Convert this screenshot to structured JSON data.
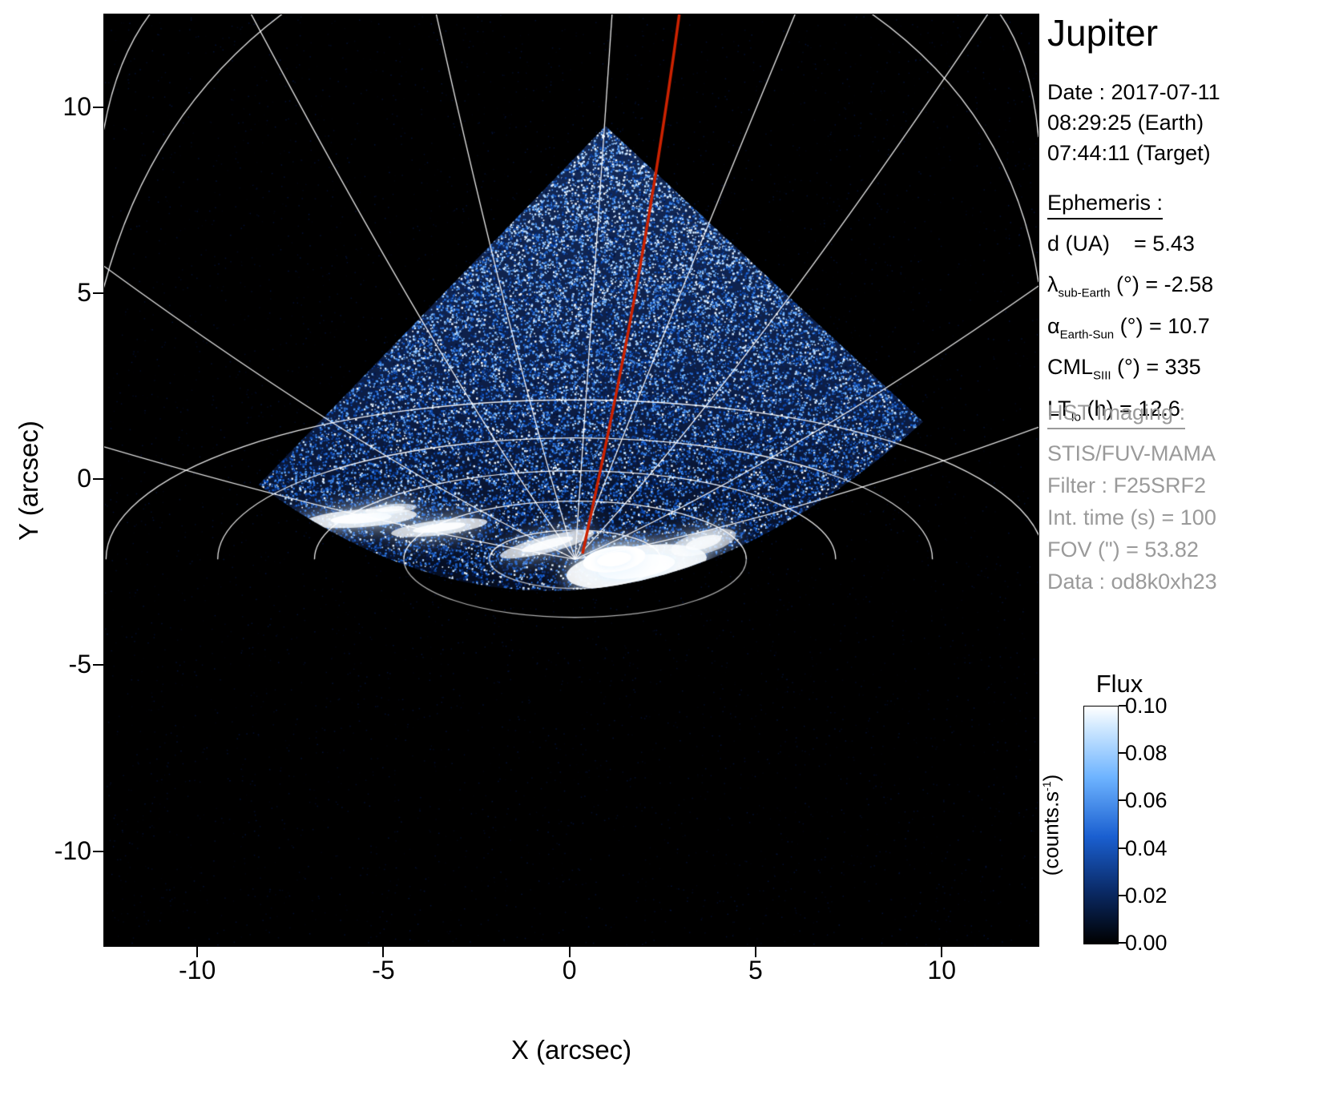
{
  "title": "Jupiter",
  "info": {
    "date_label": "Date : 2017-07-11",
    "earth_time": "08:29:25 (Earth)",
    "target_time": "07:44:11 (Target)",
    "ephemeris_header": "Ephemeris :",
    "ephemeris": [
      {
        "base": "d",
        "sub": "",
        "rest": " (UA)    = 5.43"
      },
      {
        "base": "λ",
        "sub": "sub-Earth",
        "rest": " (°) = -2.58"
      },
      {
        "base": "α",
        "sub": "Earth-Sun",
        "rest": " (°) = 10.7"
      },
      {
        "base": "CML",
        "sub": "SIII",
        "rest": " (°) = 335"
      },
      {
        "base": "LT",
        "sub": "Io",
        "rest": " (h) = 12.6"
      }
    ],
    "hst_header": "HST Imaging :",
    "hst": [
      "STIS/FUV-MAMA",
      "Filter : F25SRF2",
      "Int. time (s) = 100",
      "FOV (\") = 53.82",
      "Data : od8k0xh23"
    ]
  },
  "colorbar": {
    "title": "Flux",
    "unit_pre": "(counts.s",
    "unit_sup": "-1",
    "unit_post": ")",
    "ticks": [
      "0.10",
      "0.08",
      "0.06",
      "0.04",
      "0.02",
      "0.00"
    ],
    "gradient": [
      {
        "c": "#ffffff",
        "p": 0
      },
      {
        "c": "#cfe8ff",
        "p": 9
      },
      {
        "c": "#6db3ff",
        "p": 30
      },
      {
        "c": "#1a5fd0",
        "p": 55
      },
      {
        "c": "#0a2a66",
        "p": 78
      },
      {
        "c": "#000000",
        "p": 100
      }
    ]
  },
  "chart_data": {
    "type": "heatmap",
    "description": "HST STIS/FUV-MAMA far-ultraviolet image of Jupiter's north polar aurora. Blue colormap flux image inside a 45-degree rotated square detector field of view on a black sky, overlaid with white planetocentric coordinate gridlines (parallels and meridians converging near the pole), a red meridian curve, and bright white auroral emission patches along the main oval near the limb.",
    "xlabel": "X (arcsec)",
    "ylabel": "Y (arcsec)",
    "xticks": [
      -10,
      -5,
      0,
      5,
      10
    ],
    "yticks": [
      10,
      5,
      0,
      -5,
      -10
    ],
    "xlim": [
      -12.5,
      12.6
    ],
    "ylim": [
      -12.55,
      12.5
    ],
    "flux_range": [
      0.0,
      0.1
    ],
    "flux_units": "counts/s",
    "colormap_stops": [
      {
        "t": 0.0,
        "c": "#000000"
      },
      {
        "t": 0.22,
        "c": "#041a50"
      },
      {
        "t": 0.45,
        "c": "#105ad2"
      },
      {
        "t": 0.7,
        "c": "#6eb4ff"
      },
      {
        "t": 0.85,
        "c": "#c8e4ff"
      },
      {
        "t": 1.0,
        "c": "#ffffff"
      }
    ],
    "fov_diamond": {
      "left": [
        -8.35,
        -0.15
      ],
      "top": [
        0.97,
        9.5
      ],
      "right": [
        9.5,
        1.55
      ],
      "limb_ctrl": [
        0.4,
        -6.6
      ]
    },
    "pole": [
      0.15,
      -2.15
    ],
    "parallels_a": [
      2.3,
      4.6,
      7.0,
      9.6,
      12.6
    ],
    "parallel_flatten": 0.34,
    "meridians": [
      {
        "ctrl": [
          -5.5,
          -1.2
        ],
        "end": [
          -12.6,
          0.9
        ]
      },
      {
        "ctrl": [
          -5.2,
          0.4
        ],
        "end": [
          -12.6,
          5.8
        ]
      },
      {
        "ctrl": [
          -3.4,
          2.8
        ],
        "end": [
          -8.6,
          12.6
        ]
      },
      {
        "ctrl": [
          -1.5,
          3.2
        ],
        "end": [
          -3.6,
          12.6
        ]
      },
      {
        "ctrl": [
          0.55,
          3.5
        ],
        "end": [
          1.15,
          12.6
        ]
      },
      {
        "ctrl": [
          2.2,
          3.2
        ],
        "end": [
          6.1,
          12.6
        ]
      },
      {
        "ctrl": [
          4.6,
          2.6
        ],
        "end": [
          11.3,
          12.6
        ]
      },
      {
        "ctrl": [
          5.6,
          0.3
        ],
        "end": [
          12.6,
          5.2
        ]
      },
      {
        "ctrl": [
          5.8,
          -1.1
        ],
        "end": [
          12.6,
          1.4
        ]
      }
    ],
    "corner_arcs": [
      {
        "from": [
          -7.6,
          12.6
        ],
        "ctrl": [
          -11.4,
          9.8
        ],
        "to": [
          -12.6,
          4.8
        ]
      },
      {
        "from": [
          -11.2,
          12.6
        ],
        "ctrl": [
          -12.3,
          11.2
        ],
        "to": [
          -12.6,
          8.8
        ]
      },
      {
        "from": [
          8.0,
          12.6
        ],
        "ctrl": [
          11.9,
          9.9
        ],
        "to": [
          12.6,
          5.3
        ]
      },
      {
        "from": [
          11.5,
          12.6
        ],
        "ctrl": [
          12.4,
          11.4
        ],
        "to": [
          12.6,
          9.2
        ]
      }
    ],
    "red_meridian": {
      "color": "#cc2200",
      "start": [
        2.95,
        12.5
      ],
      "c1": [
        2.0,
        5.5
      ],
      "c2": [
        1.0,
        1.0
      ],
      "end": [
        0.35,
        -2.0
      ]
    },
    "aurora_blobs": [
      {
        "x": 1.8,
        "y": -2.35,
        "rx": 1.9,
        "ry": 0.55,
        "rot": -8,
        "a": 0.9
      },
      {
        "x": 1.2,
        "y": -2.15,
        "rx": 0.85,
        "ry": 0.34,
        "rot": -8,
        "a": 1.0
      },
      {
        "x": -0.6,
        "y": -1.75,
        "rx": 1.3,
        "ry": 0.22,
        "rot": -14,
        "a": 0.7
      },
      {
        "x": -3.5,
        "y": -1.3,
        "rx": 1.3,
        "ry": 0.2,
        "rot": -7,
        "a": 0.75
      },
      {
        "x": -5.6,
        "y": -1.05,
        "rx": 1.5,
        "ry": 0.24,
        "rot": -4,
        "a": 0.8
      },
      {
        "x": -7.3,
        "y": -1.5,
        "rx": 0.55,
        "ry": 0.3,
        "rot": 0,
        "a": 0.95
      },
      {
        "x": -4.8,
        "y": -0.8,
        "rx": 0.7,
        "ry": 0.13,
        "rot": -5,
        "a": 0.6
      },
      {
        "x": 3.6,
        "y": -1.7,
        "rx": 0.9,
        "ry": 0.3,
        "rot": -15,
        "a": 0.6
      }
    ],
    "noise": {
      "count": 52000,
      "bg_count": 6000
    }
  }
}
